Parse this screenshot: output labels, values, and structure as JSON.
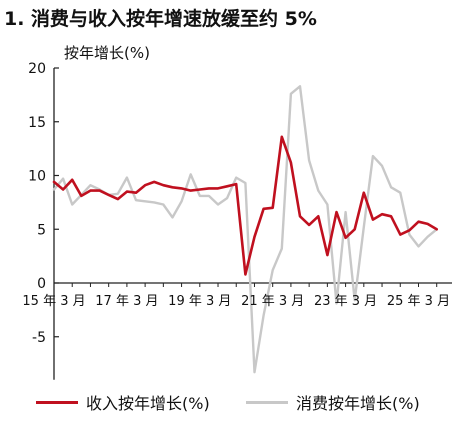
{
  "title": "1. 消费与收入按年增速放缓至约 5%",
  "chart_data": {
    "type": "line",
    "ylabel": "按年增长(%)",
    "ylim": [
      -9,
      20
    ],
    "yticks": [
      20,
      15,
      10,
      5,
      0,
      -5
    ],
    "ytick_labels": [
      "20",
      "15",
      "10",
      "5",
      "0",
      "-5"
    ],
    "xlim": [
      2015.0,
      2025.7
    ],
    "xticks": [
      2015.0,
      2017.0,
      2019.0,
      2021.0,
      2023.0,
      2025.0
    ],
    "xtick_labels": [
      "15 年 3 月",
      "17 年 3 月",
      "19 年 3 月",
      "21 年 3 月",
      "23 年 3 月",
      "25 年 3 月"
    ],
    "grid": false,
    "legend_position": "bottom",
    "series": [
      {
        "name": "收入按年增长(%)",
        "color": "#c0101f",
        "points": [
          [
            2015.0,
            9.4
          ],
          [
            2015.25,
            8.7
          ],
          [
            2015.5,
            9.6
          ],
          [
            2015.75,
            8.1
          ],
          [
            2016.0,
            8.6
          ],
          [
            2016.25,
            8.6
          ],
          [
            2016.5,
            8.2
          ],
          [
            2016.75,
            7.8
          ],
          [
            2017.0,
            8.5
          ],
          [
            2017.25,
            8.4
          ],
          [
            2017.5,
            9.1
          ],
          [
            2017.75,
            9.4
          ],
          [
            2018.0,
            9.1
          ],
          [
            2018.25,
            8.9
          ],
          [
            2018.5,
            8.8
          ],
          [
            2018.75,
            8.6
          ],
          [
            2019.0,
            8.7
          ],
          [
            2019.25,
            8.8
          ],
          [
            2019.5,
            8.8
          ],
          [
            2019.75,
            9.0
          ],
          [
            2020.0,
            9.2
          ],
          [
            2020.25,
            0.8
          ],
          [
            2020.5,
            4.3
          ],
          [
            2020.75,
            6.9
          ],
          [
            2021.0,
            7.0
          ],
          [
            2021.25,
            13.6
          ],
          [
            2021.5,
            11.2
          ],
          [
            2021.75,
            6.2
          ],
          [
            2022.0,
            5.4
          ],
          [
            2022.25,
            6.2
          ],
          [
            2022.5,
            2.6
          ],
          [
            2022.75,
            6.6
          ],
          [
            2023.0,
            4.2
          ],
          [
            2023.25,
            5.0
          ],
          [
            2023.5,
            8.4
          ],
          [
            2023.75,
            5.9
          ],
          [
            2024.0,
            6.4
          ],
          [
            2024.25,
            6.2
          ],
          [
            2024.5,
            4.5
          ],
          [
            2024.75,
            4.9
          ],
          [
            2025.0,
            5.7
          ],
          [
            2025.25,
            5.5
          ],
          [
            2025.5,
            5.0
          ]
        ]
      },
      {
        "name": "消费按年增长(%)",
        "color": "#c8c8c8",
        "points": [
          [
            2015.0,
            8.7
          ],
          [
            2015.25,
            9.7
          ],
          [
            2015.5,
            7.3
          ],
          [
            2015.75,
            8.2
          ],
          [
            2016.0,
            9.1
          ],
          [
            2016.25,
            8.7
          ],
          [
            2016.5,
            8.2
          ],
          [
            2016.75,
            8.3
          ],
          [
            2017.0,
            9.8
          ],
          [
            2017.25,
            7.7
          ],
          [
            2017.5,
            7.6
          ],
          [
            2017.75,
            7.5
          ],
          [
            2018.0,
            7.3
          ],
          [
            2018.25,
            6.1
          ],
          [
            2018.5,
            7.6
          ],
          [
            2018.75,
            10.1
          ],
          [
            2019.0,
            8.1
          ],
          [
            2019.25,
            8.1
          ],
          [
            2019.5,
            7.3
          ],
          [
            2019.75,
            7.9
          ],
          [
            2020.0,
            9.8
          ],
          [
            2020.25,
            9.3
          ],
          [
            2020.5,
            -8.3
          ],
          [
            2020.75,
            -3.0
          ],
          [
            2021.0,
            1.2
          ],
          [
            2021.25,
            3.2
          ],
          [
            2021.5,
            17.6
          ],
          [
            2021.75,
            18.3
          ],
          [
            2022.0,
            11.4
          ],
          [
            2022.25,
            8.6
          ],
          [
            2022.5,
            7.3
          ],
          [
            2022.75,
            -1.9
          ],
          [
            2023.0,
            6.6
          ],
          [
            2023.25,
            -1.6
          ],
          [
            2023.5,
            5.2
          ],
          [
            2023.75,
            11.8
          ],
          [
            2024.0,
            10.9
          ],
          [
            2024.25,
            8.9
          ],
          [
            2024.5,
            8.4
          ],
          [
            2024.75,
            4.5
          ],
          [
            2025.0,
            3.4
          ],
          [
            2025.25,
            4.3
          ],
          [
            2025.5,
            5.0
          ]
        ]
      }
    ]
  }
}
